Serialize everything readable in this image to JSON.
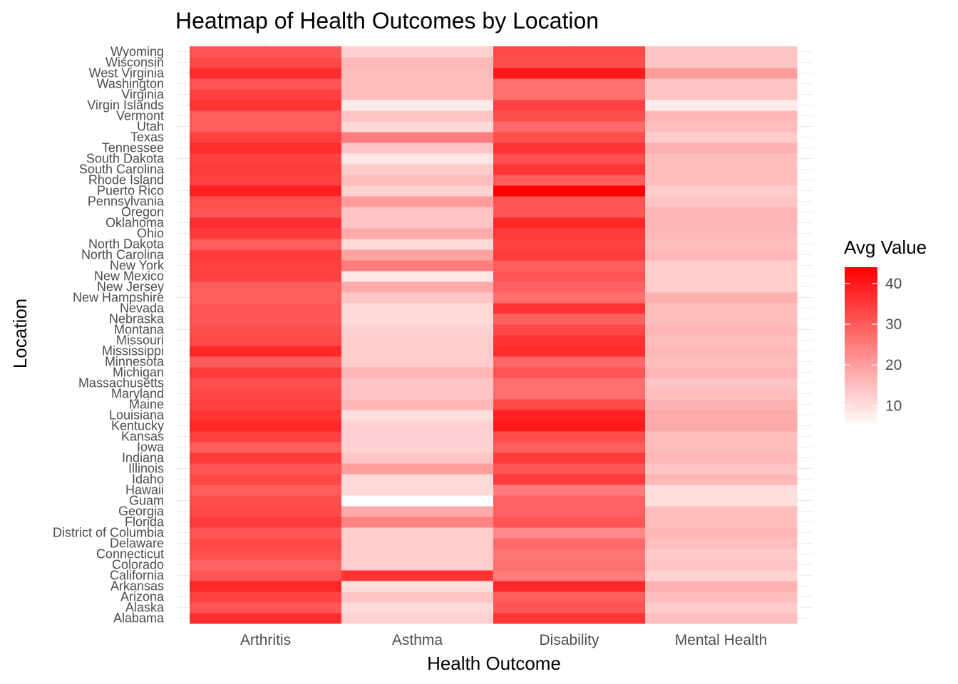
{
  "chart_data": {
    "type": "heatmap",
    "title": "Heatmap of Health Outcomes by Location",
    "xlabel": "Health Outcome",
    "ylabel": "Location",
    "x_categories": [
      "Arthritis",
      "Asthma",
      "Disability",
      "Mental Health"
    ],
    "y_categories": [
      "Alabama",
      "Alaska",
      "Arizona",
      "Arkansas",
      "California",
      "Colorado",
      "Connecticut",
      "Delaware",
      "District of Columbia",
      "Florida",
      "Georgia",
      "Guam",
      "Hawaii",
      "Idaho",
      "Illinois",
      "Indiana",
      "Iowa",
      "Kansas",
      "Kentucky",
      "Louisiana",
      "Maine",
      "Maryland",
      "Massachusetts",
      "Michigan",
      "Minnesota",
      "Mississippi",
      "Missouri",
      "Montana",
      "Nebraska",
      "Nevada",
      "New Hampshire",
      "New Jersey",
      "New Mexico",
      "New York",
      "North Carolina",
      "North Dakota",
      "Ohio",
      "Oklahoma",
      "Oregon",
      "Pennsylvania",
      "Puerto Rico",
      "Rhode Island",
      "South Carolina",
      "South Dakota",
      "Tennessee",
      "Texas",
      "Utah",
      "Vermont",
      "Virgin Islands",
      "Virginia",
      "Washington",
      "West Virginia",
      "Wisconsin",
      "Wyoming"
    ],
    "values": [
      [
        37,
        12,
        36,
        15
      ],
      [
        31,
        11,
        31,
        13
      ],
      [
        34,
        14,
        30,
        15
      ],
      [
        38,
        10,
        38,
        17
      ],
      [
        31,
        36,
        25,
        12
      ],
      [
        29,
        13,
        27,
        14
      ],
      [
        32,
        13,
        26,
        13
      ],
      [
        33,
        13,
        28,
        15
      ],
      [
        31,
        13,
        23,
        16
      ],
      [
        35,
        24,
        31,
        15
      ],
      [
        33,
        18,
        29,
        15
      ],
      [
        32,
        5,
        29,
        10
      ],
      [
        30,
        11,
        25,
        10
      ],
      [
        33,
        11,
        35,
        16
      ],
      [
        31,
        20,
        31,
        14
      ],
      [
        35,
        14,
        35,
        16
      ],
      [
        30,
        12,
        30,
        15
      ],
      [
        34,
        12,
        32,
        15
      ],
      [
        38,
        12,
        40,
        18
      ],
      [
        36,
        10,
        39,
        18
      ],
      [
        34,
        16,
        33,
        17
      ],
      [
        33,
        14,
        27,
        15
      ],
      [
        32,
        14,
        27,
        14
      ],
      [
        35,
        16,
        31,
        16
      ],
      [
        30,
        13,
        28,
        15
      ],
      [
        38,
        13,
        37,
        16
      ],
      [
        33,
        13,
        36,
        15
      ],
      [
        32,
        12,
        33,
        16
      ],
      [
        31,
        11,
        29,
        15
      ],
      [
        31,
        11,
        36,
        15
      ],
      [
        30,
        14,
        27,
        17
      ],
      [
        30,
        18,
        29,
        13
      ],
      [
        34,
        9,
        31,
        13
      ],
      [
        34,
        25,
        30,
        13
      ],
      [
        35,
        19,
        35,
        16
      ],
      [
        30,
        11,
        34,
        15
      ],
      [
        35,
        18,
        35,
        16
      ],
      [
        37,
        14,
        38,
        16
      ],
      [
        31,
        14,
        31,
        16
      ],
      [
        32,
        20,
        31,
        14
      ],
      [
        39,
        12,
        44,
        13
      ],
      [
        34,
        15,
        30,
        15
      ],
      [
        35,
        13,
        36,
        15
      ],
      [
        34,
        9,
        32,
        15
      ],
      [
        37,
        14,
        36,
        17
      ],
      [
        34,
        25,
        32,
        13
      ],
      [
        30,
        11,
        28,
        15
      ],
      [
        30,
        14,
        32,
        16
      ],
      [
        36,
        8,
        34,
        8
      ],
      [
        34,
        15,
        27,
        14
      ],
      [
        31,
        15,
        27,
        14
      ],
      [
        37,
        15,
        40,
        20
      ],
      [
        33,
        16,
        32,
        14
      ],
      [
        31,
        12,
        33,
        14
      ]
    ],
    "legend": {
      "title": "Avg Value",
      "ticks": [
        10,
        20,
        30,
        40
      ],
      "range": [
        5,
        44
      ],
      "low_color": "#ffffff",
      "high_color": "#ff0000",
      "placement": "right"
    },
    "grid": true
  }
}
